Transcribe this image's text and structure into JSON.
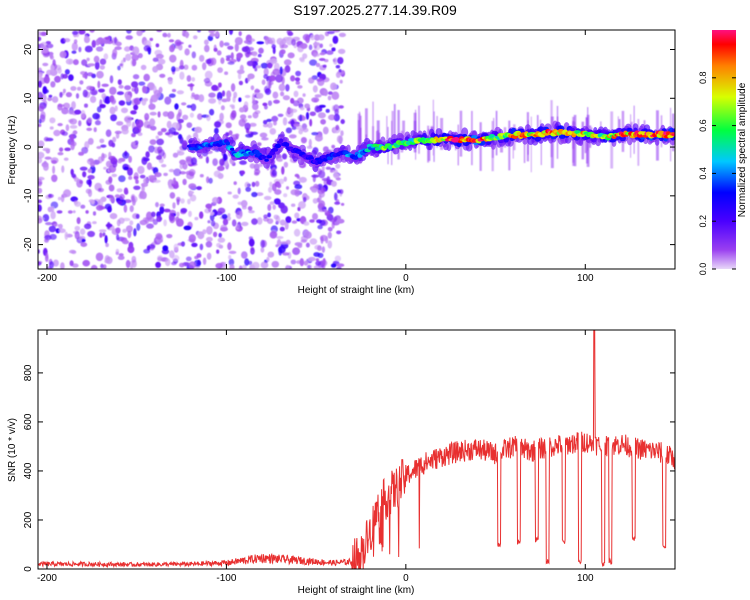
{
  "title": "S197.2025.277.14.39.R09",
  "chart_data": [
    {
      "type": "heatmap",
      "title": "S197.2025.277.14.39.R09",
      "xlabel": "Height of straight line (km)",
      "ylabel": "Frequency (Hz)",
      "xlim": [
        -205,
        150
      ],
      "ylim": [
        -25,
        24
      ],
      "x_ticks": [
        {
          "value": -200,
          "label": "-200"
        },
        {
          "value": -100,
          "label": "-100"
        },
        {
          "value": 0,
          "label": "0"
        },
        {
          "value": 100,
          "label": "100"
        }
      ],
      "y_ticks": [
        {
          "value": 20,
          "label": "20"
        },
        {
          "value": 10,
          "label": "10"
        },
        {
          "value": 0,
          "label": "0"
        },
        {
          "value": -10,
          "label": "-10"
        },
        {
          "value": -20,
          "label": "-20"
        }
      ],
      "colorbar": {
        "label": "Normalized spectral amplitude",
        "range": [
          0,
          1
        ],
        "ticks": [
          {
            "value": 0.0,
            "label": "0.0"
          },
          {
            "value": 0.2,
            "label": "0.2"
          },
          {
            "value": 0.4,
            "label": "0.4"
          },
          {
            "value": 0.6,
            "label": "0.6"
          },
          {
            "value": 0.8,
            "label": "0.8"
          }
        ],
        "colors": [
          "#e8d8f8",
          "#9a40f0",
          "#4a00ff",
          "#0000ff",
          "#00c8ff",
          "#00ff40",
          "#d8ff00",
          "#ff8000",
          "#ff0000",
          "#ff1080"
        ]
      },
      "noise_region": {
        "x_range": [
          -205,
          -35
        ],
        "freq_range": [
          -25,
          24
        ]
      },
      "signal_track": [
        {
          "x": -120,
          "freq": 0.0,
          "amp": 0.3
        },
        {
          "x": -110,
          "freq": 0.2,
          "amp": 0.35
        },
        {
          "x": -100,
          "freq": 1.0,
          "amp": 0.3
        },
        {
          "x": -95,
          "freq": -1.5,
          "amp": 0.45
        },
        {
          "x": -85,
          "freq": -1.0,
          "amp": 0.4
        },
        {
          "x": -78,
          "freq": -2.5,
          "amp": 0.3
        },
        {
          "x": -70,
          "freq": 1.0,
          "amp": 0.25
        },
        {
          "x": -60,
          "freq": -1.0,
          "amp": 0.25
        },
        {
          "x": -50,
          "freq": -3.0,
          "amp": 0.25
        },
        {
          "x": -35,
          "freq": -1.0,
          "amp": 0.35
        },
        {
          "x": -28,
          "freq": -2.0,
          "amp": 0.4
        },
        {
          "x": -20,
          "freq": 0.0,
          "amp": 0.45
        },
        {
          "x": -12,
          "freq": 0.0,
          "amp": 0.6
        },
        {
          "x": -5,
          "freq": 0.5,
          "amp": 0.55
        },
        {
          "x": 0,
          "freq": 1.0,
          "amp": 0.5
        },
        {
          "x": 8,
          "freq": 1.5,
          "amp": 0.6
        },
        {
          "x": 20,
          "freq": 1.5,
          "amp": 0.75
        },
        {
          "x": 30,
          "freq": 1.5,
          "amp": 0.9
        },
        {
          "x": 40,
          "freq": 1.5,
          "amp": 0.95
        },
        {
          "x": 50,
          "freq": 2.0,
          "amp": 0.55
        },
        {
          "x": 60,
          "freq": 2.5,
          "amp": 0.8
        },
        {
          "x": 70,
          "freq": 2.5,
          "amp": 0.7
        },
        {
          "x": 80,
          "freq": 3.0,
          "amp": 0.85
        },
        {
          "x": 90,
          "freq": 3.0,
          "amp": 0.75
        },
        {
          "x": 100,
          "freq": 2.5,
          "amp": 0.7
        },
        {
          "x": 110,
          "freq": 2.0,
          "amp": 0.65
        },
        {
          "x": 120,
          "freq": 2.5,
          "amp": 0.8
        },
        {
          "x": 130,
          "freq": 2.5,
          "amp": 0.85
        },
        {
          "x": 140,
          "freq": 2.5,
          "amp": 0.9
        },
        {
          "x": 150,
          "freq": 2.5,
          "amp": 0.85
        }
      ]
    },
    {
      "type": "line",
      "xlabel": "Height of straight line (km)",
      "ylabel": "SNR (10 * v/v)",
      "xlim": [
        -205,
        150
      ],
      "ylim": [
        0,
        975
      ],
      "line_color": "#e83030",
      "x_ticks": [
        {
          "value": -200,
          "label": "-200"
        },
        {
          "value": -100,
          "label": "-100"
        },
        {
          "value": 0,
          "label": "0"
        },
        {
          "value": 100,
          "label": "100"
        }
      ],
      "y_ticks": [
        {
          "value": 0,
          "label": "0"
        },
        {
          "value": 200,
          "label": "200"
        },
        {
          "value": 400,
          "label": "400"
        },
        {
          "value": 600,
          "label": "600"
        },
        {
          "value": 800,
          "label": "800"
        }
      ],
      "envelope": {
        "x": [
          -205,
          -180,
          -150,
          -120,
          -100,
          -90,
          -80,
          -70,
          -60,
          -50,
          -40,
          -30,
          -25,
          -20,
          -15,
          -10,
          -5,
          0,
          10,
          20,
          30,
          40,
          50,
          60,
          70,
          80,
          90,
          100,
          110,
          120,
          130,
          140,
          150
        ],
        "y": [
          20,
          20,
          18,
          20,
          25,
          35,
          45,
          40,
          35,
          30,
          25,
          30,
          60,
          150,
          250,
          300,
          330,
          380,
          430,
          460,
          480,
          490,
          470,
          500,
          480,
          500,
          510,
          520,
          500,
          510,
          490,
          480,
          450
        ]
      },
      "dropouts": [
        {
          "x": 52,
          "y": 90
        },
        {
          "x": 63,
          "y": 100
        },
        {
          "x": 73,
          "y": 110
        },
        {
          "x": 79,
          "y": 20
        },
        {
          "x": 88,
          "y": 100
        },
        {
          "x": 97,
          "y": 20
        },
        {
          "x": 110,
          "y": 10
        },
        {
          "x": 114,
          "y": 20
        },
        {
          "x": 127,
          "y": 110
        },
        {
          "x": 144,
          "y": 80
        }
      ],
      "spike": {
        "x": 105,
        "y": 975
      }
    }
  ]
}
